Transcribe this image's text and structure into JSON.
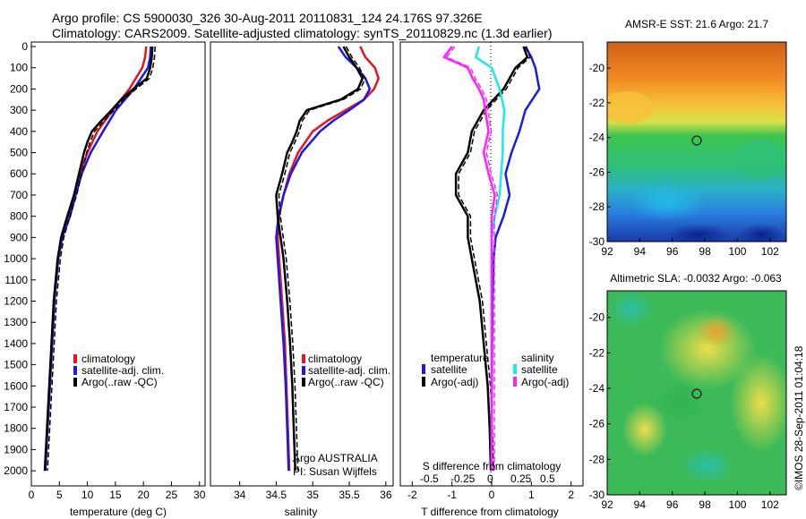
{
  "header": {
    "line1": "Argo profile: CS 5900030_326 30-Aug-2011 20110831_124 24.176S 97.326E",
    "line2": "Climatology: CARS2009. Satellite-adjusted climatology: synTS_20110829.nc (1.3d earlier)"
  },
  "colors": {
    "climatology": "#e8141c",
    "satellite": "#1a1ae6",
    "argo": "#000000",
    "sal_satellite": "#1de8ee",
    "sal_argo": "#ff22ff"
  },
  "chart_data": [
    {
      "type": "line",
      "panel": "temperature",
      "xlabel": "temperature (deg C)",
      "xlim": [
        0,
        31
      ],
      "ylim": [
        0,
        2050
      ],
      "y_reversed": true,
      "xticks": [
        0,
        5,
        10,
        15,
        20,
        25,
        30
      ],
      "yticks": [
        0,
        100,
        200,
        300,
        400,
        500,
        600,
        700,
        800,
        900,
        1000,
        1100,
        1200,
        1300,
        1400,
        1500,
        1600,
        1700,
        1800,
        1900,
        2000
      ],
      "legend": [
        "climatology",
        "satellite-adj. clim.",
        "Argo(..raw -QC)"
      ],
      "series": [
        {
          "name": "climatology",
          "depth": [
            0,
            50,
            100,
            200,
            300,
            400,
            500,
            600,
            700,
            800,
            900,
            1000,
            1200,
            1400,
            1600,
            1800,
            2000
          ],
          "values": [
            20.5,
            20.3,
            19.8,
            17.5,
            14.5,
            11.8,
            10.0,
            8.7,
            7.7,
            6.8,
            5.5,
            4.8,
            4.1,
            3.7,
            3.3,
            2.9,
            2.5
          ]
        },
        {
          "name": "satellite-adj. clim.",
          "depth": [
            0,
            50,
            100,
            200,
            300,
            400,
            500,
            600,
            700,
            800,
            900,
            1000,
            1200,
            1400,
            1600,
            1800,
            2000
          ],
          "values": [
            21.3,
            21.2,
            20.8,
            18.3,
            15.1,
            12.8,
            10.6,
            9.0,
            7.9,
            6.9,
            5.5,
            4.8,
            4.1,
            3.7,
            3.3,
            2.9,
            2.5
          ]
        },
        {
          "name": "Argo(..raw -QC)",
          "depth": [
            0,
            50,
            100,
            150,
            200,
            250,
            300,
            350,
            400,
            450,
            500,
            600,
            700,
            800,
            900,
            1000,
            1200,
            1400,
            1600,
            1800,
            2000
          ],
          "values": [
            21.6,
            21.5,
            21.2,
            20.6,
            18.2,
            16.0,
            14.3,
            12.5,
            10.8,
            10.0,
            9.4,
            8.5,
            7.6,
            6.4,
            5.3,
            4.7,
            4.0,
            3.6,
            3.2,
            2.8,
            2.4
          ]
        }
      ]
    },
    {
      "type": "line",
      "panel": "salinity",
      "xlabel": "salinity",
      "xlim": [
        33.6,
        36.1
      ],
      "ylim": [
        0,
        2050
      ],
      "y_reversed": true,
      "xticks": [
        34,
        34.5,
        35,
        35.5,
        36
      ],
      "legend": [
        "climatology",
        "satellite-adj. clim.",
        "Argo(..raw -QC)"
      ],
      "annotation": [
        "Argo AUSTRALIA",
        "PI: Susan Wijffels"
      ],
      "series": [
        {
          "name": "climatology",
          "depth": [
            0,
            50,
            100,
            150,
            200,
            250,
            300,
            350,
            400,
            500,
            600,
            700,
            800,
            900,
            1000,
            1200,
            1400,
            1600,
            1800,
            2000
          ],
          "values": [
            35.65,
            35.72,
            35.85,
            35.9,
            35.84,
            35.7,
            35.45,
            35.2,
            35.0,
            34.8,
            34.68,
            34.6,
            34.54,
            34.52,
            34.54,
            34.58,
            34.62,
            34.64,
            34.66,
            34.68
          ]
        },
        {
          "name": "satellite-adj. clim.",
          "depth": [
            0,
            50,
            100,
            150,
            200,
            250,
            300,
            350,
            400,
            500,
            600,
            700,
            800,
            900,
            1000,
            1200,
            1400,
            1600,
            1800,
            2000
          ],
          "values": [
            35.35,
            35.45,
            35.6,
            35.72,
            35.78,
            35.7,
            35.5,
            35.28,
            35.1,
            34.85,
            34.7,
            34.6,
            34.53,
            34.5,
            34.52,
            34.56,
            34.6,
            34.63,
            34.65,
            34.67
          ]
        },
        {
          "name": "Argo(..raw -QC)",
          "depth": [
            0,
            50,
            100,
            150,
            200,
            250,
            300,
            350,
            400,
            450,
            500,
            600,
            700,
            800,
            900,
            1000,
            1200,
            1400,
            1600,
            1800,
            2000
          ],
          "values": [
            35.42,
            35.5,
            35.6,
            35.68,
            35.62,
            35.38,
            34.92,
            34.82,
            34.78,
            34.72,
            34.65,
            34.58,
            34.5,
            34.52,
            34.56,
            34.6,
            34.65,
            34.69,
            34.72,
            34.74,
            34.76
          ]
        }
      ]
    },
    {
      "type": "line",
      "panel": "difference",
      "xlabel": "T difference from climatology",
      "top_label": "S difference from climatology",
      "xlim": [
        -2.3,
        2.3
      ],
      "ylim": [
        0,
        2050
      ],
      "y_reversed": true,
      "xticks": [
        -2,
        -1,
        0,
        1,
        2
      ],
      "top_ticks": [
        "-0.5",
        "-0.25",
        "0",
        "0.25",
        "0.5"
      ],
      "legend_groups": [
        {
          "title": "temperature",
          "entries": [
            "satellite",
            "Argo(-adj)"
          ]
        },
        {
          "title": "salinity",
          "entries": [
            "satellite",
            "Argo(-adj)"
          ]
        }
      ],
      "series": [
        {
          "name": "satellite",
          "quantity": "temperature",
          "depth": [
            0,
            50,
            100,
            200,
            300,
            400,
            500,
            600,
            700,
            800,
            900,
            1000,
            1200,
            1500,
            2000
          ],
          "values": [
            0.85,
            1.0,
            1.1,
            1.2,
            0.85,
            0.7,
            0.5,
            0.35,
            0.45,
            0.3,
            0.1,
            0.05,
            0.02,
            0.01,
            0
          ]
        },
        {
          "name": "Argo(-adj)",
          "quantity": "temperature",
          "depth": [
            0,
            50,
            100,
            200,
            300,
            400,
            500,
            600,
            700,
            800,
            900,
            1000,
            1200,
            1400,
            1600,
            1800,
            2000
          ],
          "values": [
            0.8,
            0.9,
            0.6,
            0.3,
            -0.2,
            -0.5,
            -0.6,
            -0.9,
            -0.9,
            -0.6,
            -0.6,
            -0.5,
            -0.3,
            -0.2,
            -0.1,
            -0.05,
            -0.02
          ]
        },
        {
          "name": "satellite",
          "quantity": "salinity",
          "depth": [
            0,
            50,
            100,
            200,
            300,
            400,
            500,
            600,
            700,
            800,
            900,
            1000,
            1500,
            2000
          ],
          "values": [
            -0.08,
            -0.1,
            0.0,
            0.05,
            0.08,
            0.07,
            0.07,
            0.06,
            0.05,
            0.02,
            0.0,
            0.0,
            0.0,
            0.0
          ]
        },
        {
          "name": "Argo(-adj)",
          "quantity": "salinity",
          "depth": [
            0,
            50,
            100,
            150,
            200,
            250,
            300,
            350,
            400,
            500,
            600,
            700,
            800,
            900,
            1000,
            1500,
            2000
          ],
          "values": [
            -0.25,
            -0.3,
            -0.15,
            -0.12,
            -0.08,
            -0.05,
            -0.04,
            -0.03,
            -0.02,
            -0.05,
            -0.02,
            0.02,
            0.0,
            0.0,
            0.0,
            0.0,
            0.0
          ]
        }
      ]
    },
    {
      "type": "heatmap",
      "panel": "sst_map",
      "title": "AMSR-E SST: 21.6 Argo: 21.7",
      "xlim": [
        92,
        103
      ],
      "ylim": [
        -30,
        -18.5
      ],
      "xticks": [
        92,
        94,
        96,
        98,
        100,
        102
      ],
      "yticks": [
        -20,
        -22,
        -24,
        -26,
        -28,
        -30
      ],
      "marker": {
        "lon": 97.3,
        "lat": -24.2
      }
    },
    {
      "type": "heatmap",
      "panel": "sla_map",
      "title": "Altimetric SLA: -0.0032 Argo: -0.063",
      "xlim": [
        92,
        103
      ],
      "ylim": [
        -30,
        -18.5
      ],
      "xticks": [
        92,
        94,
        96,
        98,
        100,
        102
      ],
      "yticks": [
        -20,
        -22,
        -24,
        -26,
        -28,
        -30
      ],
      "marker": {
        "lon": 97.3,
        "lat": -24.2
      }
    }
  ],
  "side_label": "©IMOS 28-Sep-2011 01:04:18"
}
